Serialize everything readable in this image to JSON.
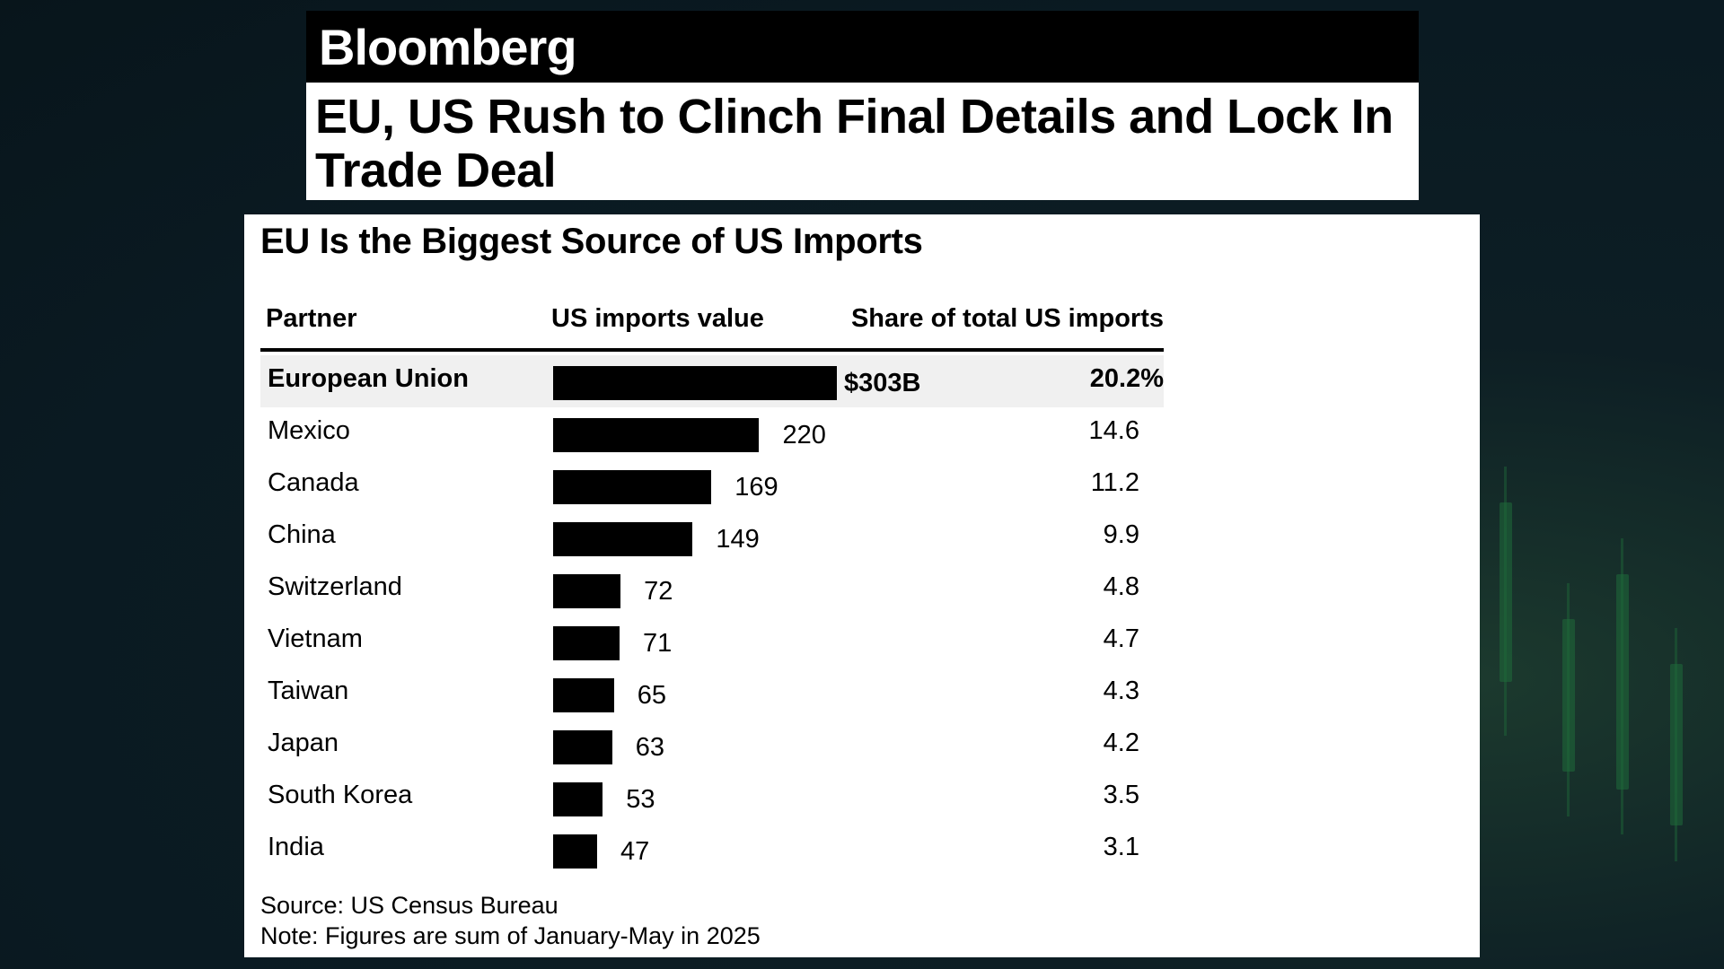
{
  "brand": "Bloomberg",
  "headline": "EU, US Rush to Clinch Final Details and Lock In Trade Deal",
  "chart_data": {
    "type": "bar",
    "title": "EU Is the Biggest Source of US Imports",
    "columns": [
      "Partner",
      "US imports value",
      "Share of total US imports"
    ],
    "categories": [
      "European Union",
      "Mexico",
      "Canada",
      "China",
      "Switzerland",
      "Vietnam",
      "Taiwan",
      "Japan",
      "South Korea",
      "India"
    ],
    "values": [
      303,
      220,
      169,
      149,
      72,
      71,
      65,
      63,
      53,
      47
    ],
    "value_labels": [
      "$303B",
      "220",
      "169",
      "149",
      "72",
      "71",
      "65",
      "63",
      "53",
      "47"
    ],
    "shares": [
      20.2,
      14.6,
      11.2,
      9.9,
      4.8,
      4.7,
      4.3,
      4.2,
      3.5,
      3.1
    ],
    "share_labels": [
      "20.2%",
      "14.6",
      "11.2",
      "9.9",
      "4.8",
      "4.7",
      "4.3",
      "4.2",
      "3.5",
      "3.1"
    ],
    "highlighted": "European Union",
    "bar_color": "#000000",
    "highlight_row_color": "#f0f0f0",
    "source": "Source: US Census Bureau",
    "note": "Note: Figures are sum of January-May in 2025"
  }
}
